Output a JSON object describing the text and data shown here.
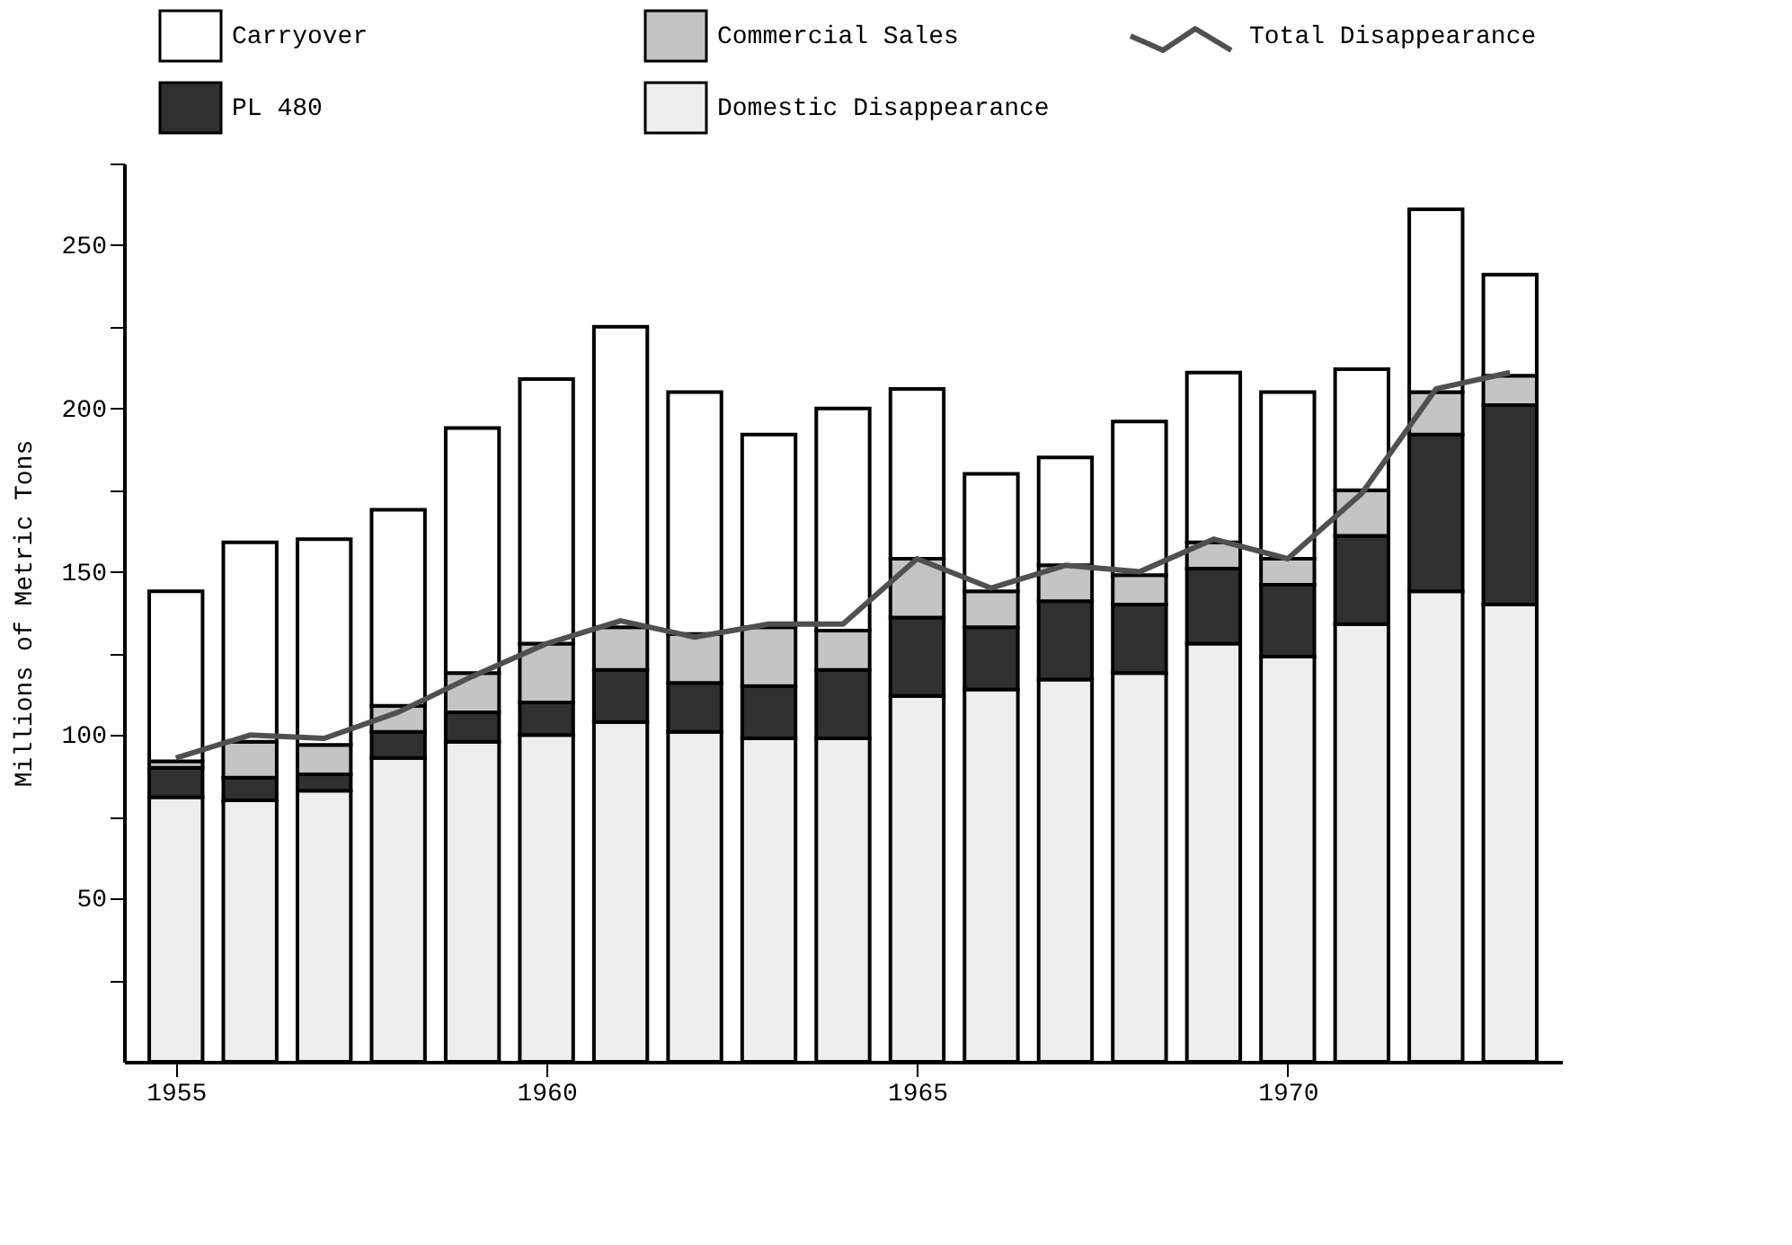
{
  "chart_data": {
    "type": "bar",
    "stacked": true,
    "ylabel": "Millions of Metric Tons",
    "categories": [
      "1955",
      null,
      null,
      null,
      null,
      "1960",
      null,
      null,
      null,
      null,
      "1965",
      null,
      null,
      null,
      null,
      "1970",
      null,
      null,
      null
    ],
    "series": [
      {
        "name": "Domestic Disappearance",
        "color": "#eeeeee",
        "values": [
          81,
          80,
          83,
          93,
          98,
          100,
          104,
          101,
          99,
          99,
          112,
          114,
          117,
          119,
          128,
          124,
          134,
          144,
          140
        ]
      },
      {
        "name": "PL 480",
        "color": "#303030",
        "values": [
          9,
          7,
          5,
          8,
          9,
          10,
          16,
          15,
          16,
          21,
          24,
          19,
          24,
          21,
          23,
          22,
          27,
          48,
          61
        ]
      },
      {
        "name": "Commercial Sales",
        "color": "#c4c4c4",
        "values": [
          2,
          11,
          9,
          8,
          12,
          18,
          13,
          15,
          18,
          12,
          18,
          11,
          11,
          9,
          8,
          8,
          14,
          13,
          9
        ]
      },
      {
        "name": "Carryover",
        "color": "#ffffff",
        "values": [
          52,
          61,
          63,
          60,
          75,
          81,
          92,
          74,
          59,
          68,
          52,
          36,
          33,
          47,
          52,
          51,
          37,
          56,
          31
        ]
      },
      {
        "name": "Total Disappearance",
        "type": "line",
        "color": "#505050",
        "values": [
          93,
          100,
          99,
          107,
          118,
          128,
          135,
          130,
          134,
          134,
          154,
          145,
          152,
          150,
          160,
          154,
          174,
          206,
          211
        ]
      }
    ],
    "ylim": [
      0,
      275
    ],
    "yticks": [
      {
        "value": 25,
        "label": null
      },
      50,
      {
        "value": 75,
        "label": null
      },
      100,
      {
        "value": 125,
        "label": null
      },
      150,
      {
        "value": 175,
        "label": null
      },
      200,
      {
        "value": 225,
        "label": null
      },
      250,
      {
        "value": 275,
        "label": null
      }
    ],
    "grid": false,
    "legend": "top",
    "line_style": "solid"
  }
}
